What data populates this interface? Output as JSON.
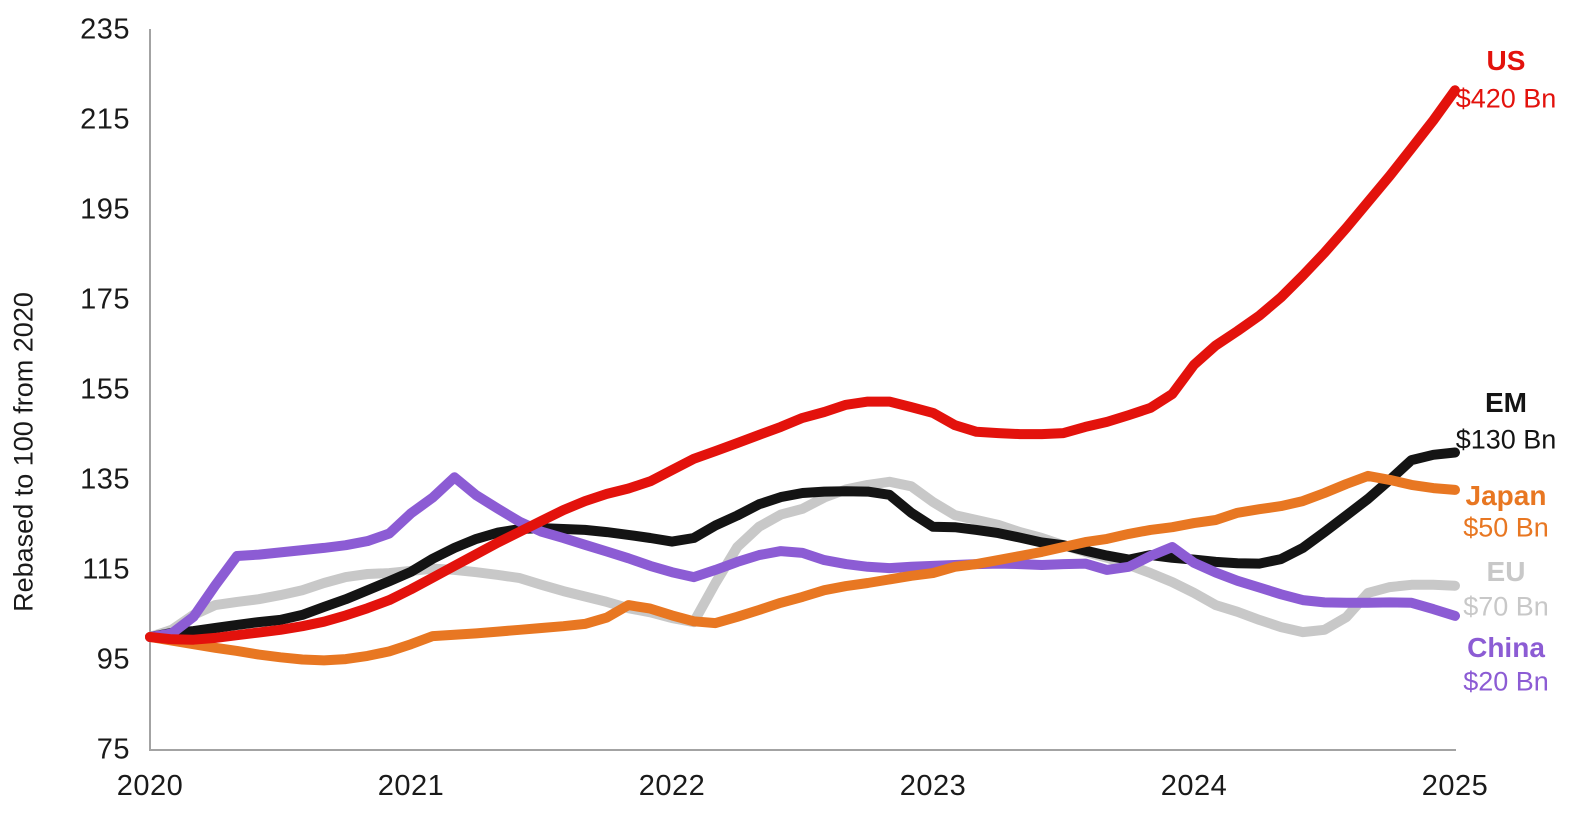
{
  "chart_data": {
    "type": "line",
    "title": "",
    "ylabel": "Rebased to 100 from 2020",
    "xlabel": "",
    "grid": false,
    "legend_position": "right-end-labels",
    "ylim": [
      75,
      235
    ],
    "y_ticks": [
      75,
      95,
      115,
      135,
      155,
      175,
      195,
      215,
      235
    ],
    "x_tick_labels": [
      "2020",
      "2021",
      "2022",
      "2023",
      "2024",
      "2025"
    ],
    "x_unit": "monthly, Jan 2020 - Jan 2025",
    "axis_color": "#a3a3a3",
    "text_color": "#1a1a1a",
    "series": [
      {
        "name": "US",
        "end_label": "$420 Bn",
        "color": "#e3120c",
        "values": [
          100,
          99.5,
          99.4,
          99.8,
          100.4,
          101,
          101.6,
          102.4,
          103.4,
          104.8,
          106.4,
          108.2,
          110.6,
          113.2,
          115.8,
          118.4,
          121,
          123.4,
          125.8,
          128.2,
          130.2,
          131.8,
          133,
          134.6,
          137.1,
          139.6,
          141.3,
          143.1,
          144.9,
          146.7,
          148.7,
          150,
          151.6,
          152.3,
          152.3,
          151.1,
          149.8,
          147.1,
          145.6,
          145.3,
          145.1,
          145.1,
          145.3,
          146.7,
          147.8,
          149.3,
          150.9,
          154,
          160.5,
          164.8,
          168,
          171.4,
          175.5,
          180.3,
          185.4,
          190.9,
          196.7,
          202.5,
          208.6,
          214.8,
          221.5
        ]
      },
      {
        "name": "EM",
        "end_label": "$130 Bn",
        "color": "#141414",
        "values": [
          100,
          100.9,
          101.3,
          102,
          102.7,
          103.3,
          103.8,
          104.9,
          106.7,
          108.4,
          110.4,
          112.4,
          114.5,
          117.4,
          119.8,
          121.8,
          123.2,
          124,
          124.2,
          124,
          123.8,
          123.3,
          122.7,
          122,
          121.2,
          122,
          124.8,
          127,
          129.5,
          131.1,
          132,
          132.3,
          132.4,
          132.3,
          131.6,
          127.6,
          124.5,
          124.4,
          123.8,
          123.1,
          122.1,
          121,
          120.4,
          119.2,
          118.1,
          117.2,
          118.2,
          117.6,
          117.2,
          116.7,
          116.4,
          116.3,
          117.3,
          119.8,
          123.3,
          127,
          130.7,
          134.9,
          139.3,
          140.5,
          141
        ]
      },
      {
        "name": "Japan",
        "end_label": "$50 Bn",
        "color": "#e87722",
        "values": [
          100,
          99.2,
          98.4,
          97.6,
          96.9,
          96.1,
          95.5,
          95,
          94.8,
          95.1,
          95.8,
          96.8,
          98.4,
          100.2,
          100.5,
          100.8,
          101.2,
          101.6,
          102,
          102.4,
          102.9,
          104.3,
          107.1,
          106.3,
          104.8,
          103.5,
          103.1,
          104.5,
          106,
          107.6,
          108.9,
          110.4,
          111.3,
          112,
          112.8,
          113.6,
          114.2,
          115.6,
          116.2,
          117.1,
          118,
          118.9,
          120,
          121.1,
          121.8,
          122.9,
          123.8,
          124.4,
          125.3,
          126,
          127.6,
          128.4,
          129.1,
          130.2,
          132,
          134,
          135.8,
          134.9,
          133.8,
          133.1,
          132.7
        ]
      },
      {
        "name": "EU",
        "end_label": "$70 Bn",
        "color": "#c8c8c8",
        "values": [
          100,
          101.6,
          104.9,
          107.1,
          107.8,
          108.4,
          109.3,
          110.4,
          112,
          113.3,
          114,
          114.2,
          114.7,
          115.2,
          114.9,
          114.4,
          113.8,
          113.1,
          111.6,
          110.2,
          109,
          107.8,
          106.4,
          105.5,
          104.2,
          103.3,
          112,
          120,
          124.5,
          127.2,
          128.5,
          131,
          132.8,
          133.8,
          134.5,
          133.5,
          130,
          127.1,
          126,
          124.9,
          123.3,
          122,
          120.4,
          118.9,
          117.6,
          116,
          114.2,
          112.2,
          109.8,
          107.1,
          105.6,
          103.8,
          102.2,
          101.1,
          101.6,
          104.4,
          109.8,
          111.1,
          111.6,
          111.6,
          111.4
        ]
      },
      {
        "name": "China",
        "end_label": "$20 Bn",
        "color": "#8c5cd4",
        "values": [
          100,
          100.8,
          104.5,
          111.5,
          118,
          118.3,
          118.8,
          119.3,
          119.8,
          120.4,
          121.3,
          123,
          127.5,
          131,
          135.5,
          131.5,
          128.5,
          125.6,
          123.4,
          122,
          120.5,
          119,
          117.5,
          115.8,
          114.4,
          113.3,
          114.9,
          116.7,
          118.2,
          119.1,
          118.7,
          117.1,
          116.2,
          115.6,
          115.3,
          115.6,
          115.8,
          116,
          116.2,
          116.3,
          116.2,
          116,
          116.2,
          116.3,
          114.9,
          115.6,
          118,
          120,
          116.5,
          114.3,
          112.5,
          111,
          109.5,
          108.2,
          107.7,
          107.6,
          107.6,
          107.7,
          107.6,
          106.2,
          104.7
        ]
      }
    ]
  }
}
